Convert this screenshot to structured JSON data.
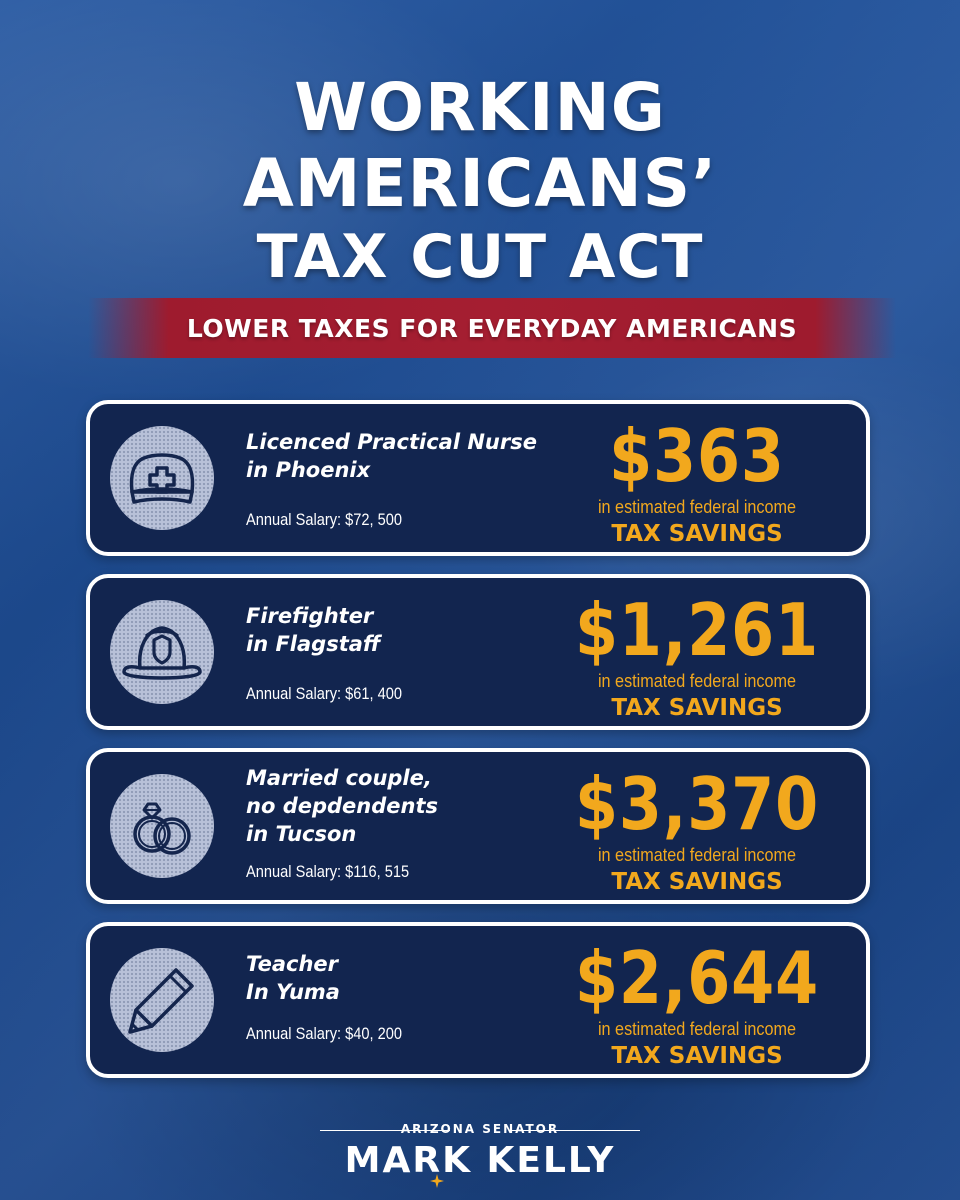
{
  "title": {
    "line1": "WORKING",
    "line2": "AMERICANS’",
    "line3": "TAX CUT ACT"
  },
  "banner": "LOWER TAXES FOR EVERYDAY AMERICANS",
  "colors": {
    "background": "#1f4c91",
    "card": "#12254f",
    "accent_gold": "#f2a81d",
    "banner_red": "#a51e31",
    "text": "#ffffff"
  },
  "cards": [
    {
      "icon": "nurse-cap-icon",
      "job_lines": [
        "Licenced Practical Nurse",
        "in Phoenix"
      ],
      "salary": "Annual Salary: $72, 500",
      "amount": "$363",
      "estimate_text": "in estimated federal income",
      "savings_label": "TAX SAVINGS"
    },
    {
      "icon": "firefighter-helmet-icon",
      "job_lines": [
        "Firefighter",
        "in Flagstaff"
      ],
      "salary": "Annual Salary: $61, 400",
      "amount": "$1,261",
      "estimate_text": "in estimated federal income",
      "savings_label": "TAX SAVINGS"
    },
    {
      "icon": "wedding-rings-icon",
      "job_lines": [
        "Married couple,",
        "no depdendents",
        "in Tucson"
      ],
      "salary": "Annual Salary: $116, 515",
      "amount": "$3,370",
      "estimate_text": "in estimated federal income",
      "savings_label": "TAX SAVINGS"
    },
    {
      "icon": "pencil-icon",
      "job_lines": [
        "Teacher",
        "In Yuma"
      ],
      "salary": "Annual Salary: $40, 200",
      "amount": "$2,644",
      "estimate_text": "in estimated federal income",
      "savings_label": "TAX SAVINGS"
    }
  ],
  "footer": {
    "subtitle": "ARIZONA SENATOR",
    "name": "MARK KELLY"
  }
}
